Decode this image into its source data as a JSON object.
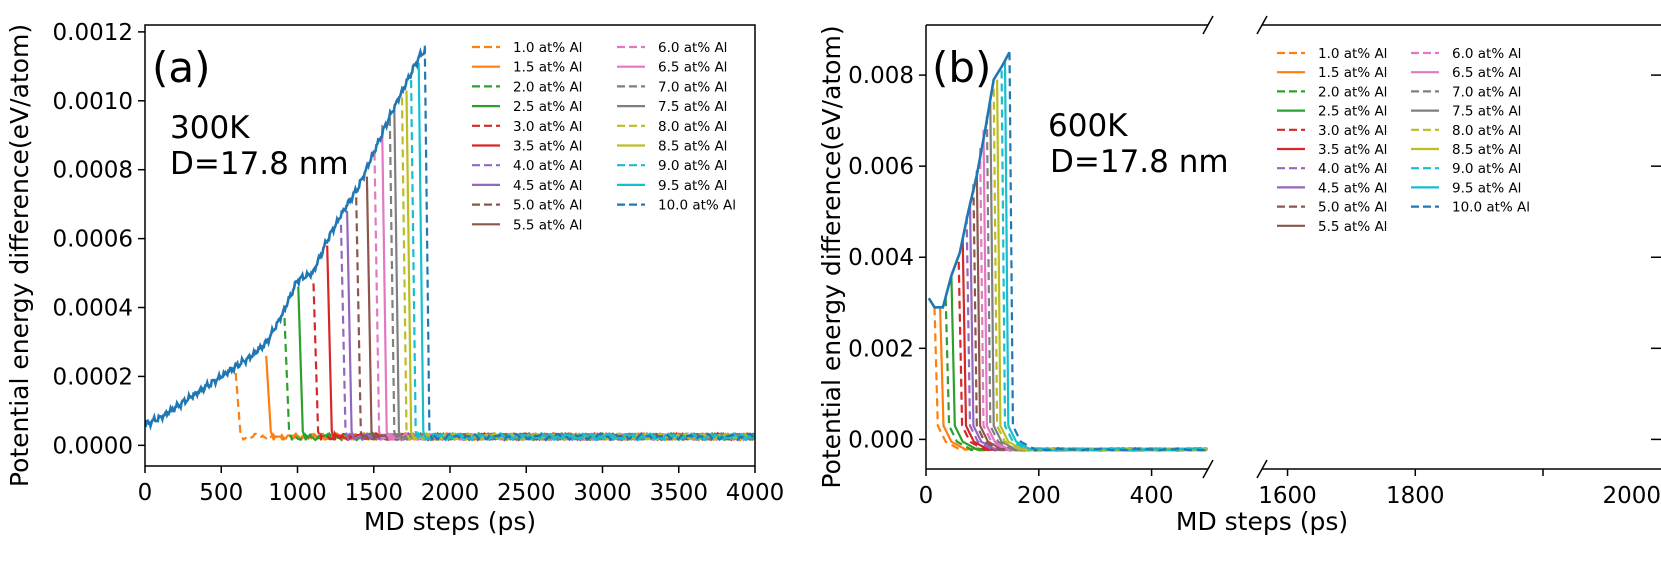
{
  "chart_data": [
    {
      "type": "line",
      "panel_label": "(a)",
      "annotations": [
        "300K",
        "D=17.8 nm"
      ],
      "xlabel": "MD steps (ps)",
      "ylabel": "Potential energy difference(eV/atom)",
      "xlim": [
        0,
        4000
      ],
      "ylim": [
        -6e-05,
        0.00122
      ],
      "x_ticks": [
        0,
        500,
        1000,
        1500,
        2000,
        2500,
        3000,
        3500,
        4000
      ],
      "x_tick_labels": [
        "0",
        "500",
        "1000",
        "1500",
        "2000",
        "2500",
        "3000",
        "3500",
        "4000"
      ],
      "y_ticks": [
        0,
        0.0002,
        0.0004,
        0.0006,
        0.0008,
        0.001,
        0.0012
      ],
      "y_tick_labels": [
        "0.0000",
        "0.0002",
        "0.0004",
        "0.0006",
        "0.0008",
        "0.0010",
        "0.0012"
      ],
      "legend_position": "top-right",
      "growth_curve": {
        "x": [
          0,
          100,
          200,
          300,
          400,
          500,
          600,
          700,
          800,
          900,
          1000,
          1100,
          1200,
          1300,
          1400,
          1500,
          1600,
          1700,
          1800,
          1850
        ],
        "y": [
          6e-05,
          8e-05,
          0.00011,
          0.00014,
          0.00017,
          0.0002,
          0.00023,
          0.00026,
          0.0003,
          0.00038,
          0.00048,
          0.0005,
          0.0006,
          0.00068,
          0.00075,
          0.00085,
          0.00095,
          0.00104,
          0.00113,
          0.00115
        ]
      },
      "series": [
        {
          "name": "1.0 at% Al",
          "color": "#ff7f0e",
          "dash": true,
          "drop_x": 600,
          "peak": 0.00021
        },
        {
          "name": "1.5 at% Al",
          "color": "#ff7f0e",
          "dash": false,
          "drop_x": 800,
          "peak": 0.00026
        },
        {
          "name": "2.0 at% Al",
          "color": "#2ca02c",
          "dash": true,
          "drop_x": 920,
          "peak": 0.00037
        },
        {
          "name": "2.5 at% Al",
          "color": "#2ca02c",
          "dash": false,
          "drop_x": 1010,
          "peak": 0.00046
        },
        {
          "name": "3.0 at% Al",
          "color": "#d62728",
          "dash": true,
          "drop_x": 1110,
          "peak": 0.00047
        },
        {
          "name": "3.5 at% Al",
          "color": "#d62728",
          "dash": false,
          "drop_x": 1200,
          "peak": 0.00058
        },
        {
          "name": "4.0 at% Al",
          "color": "#9467bd",
          "dash": true,
          "drop_x": 1290,
          "peak": 0.00064
        },
        {
          "name": "4.5 at% Al",
          "color": "#9467bd",
          "dash": false,
          "drop_x": 1330,
          "peak": 0.00068
        },
        {
          "name": "5.0 at% Al",
          "color": "#8c564b",
          "dash": true,
          "drop_x": 1390,
          "peak": 0.00072
        },
        {
          "name": "5.5 at% Al",
          "color": "#8c564b",
          "dash": false,
          "drop_x": 1460,
          "peak": 0.00078
        },
        {
          "name": "6.0 at% Al",
          "color": "#e377c2",
          "dash": true,
          "drop_x": 1510,
          "peak": 0.00085
        },
        {
          "name": "6.5 at% Al",
          "color": "#e377c2",
          "dash": false,
          "drop_x": 1560,
          "peak": 0.00093
        },
        {
          "name": "7.0 at% Al",
          "color": "#7f7f7f",
          "dash": true,
          "drop_x": 1610,
          "peak": 0.00095
        },
        {
          "name": "7.5 at% Al",
          "color": "#7f7f7f",
          "dash": false,
          "drop_x": 1640,
          "peak": 0.00098
        },
        {
          "name": "8.0 at% Al",
          "color": "#bcbd22",
          "dash": true,
          "drop_x": 1690,
          "peak": 0.00101
        },
        {
          "name": "8.5 at% Al",
          "color": "#bcbd22",
          "dash": false,
          "drop_x": 1720,
          "peak": 0.00103
        },
        {
          "name": "9.0 at% Al",
          "color": "#17becf",
          "dash": true,
          "drop_x": 1750,
          "peak": 0.00106
        },
        {
          "name": "9.5 at% Al",
          "color": "#17becf",
          "dash": false,
          "drop_x": 1800,
          "peak": 0.00111
        },
        {
          "name": "10.0 at% Al",
          "color": "#1f77b4",
          "dash": true,
          "drop_x": 1840,
          "peak": 0.00116
        }
      ]
    },
    {
      "type": "line",
      "panel_label": "(b)",
      "annotations": [
        "600K",
        "D=17.8 nm"
      ],
      "xlabel": "MD steps (ps)",
      "ylabel": "Potential energy difference(eV/atom)",
      "broken_x_axis": true,
      "xlim_left": [
        0,
        500
      ],
      "xlim_right": [
        1560,
        2000
      ],
      "ylim": [
        -0.00065,
        0.0091
      ],
      "x_ticks_left": [
        0,
        200,
        400
      ],
      "x_tick_labels_left": [
        "0",
        "200",
        "400"
      ],
      "x_ticks_right": [
        1600,
        1800,
        2000
      ],
      "x_tick_labels_right": [
        "1600",
        "1800",
        "2000"
      ],
      "y_ticks": [
        0,
        0.002,
        0.004,
        0.006,
        0.008
      ],
      "y_tick_labels": [
        "0.000",
        "0.002",
        "0.004",
        "0.006",
        "0.008"
      ],
      "legend_position": "top-right",
      "growth_curve": {
        "x": [
          5,
          15,
          30,
          45,
          60,
          75,
          90,
          105,
          120,
          135,
          148
        ],
        "y": [
          0.0031,
          0.0029,
          0.0029,
          0.0036,
          0.0041,
          0.005,
          0.0058,
          0.0068,
          0.0079,
          0.0082,
          0.0085
        ]
      },
      "series": [
        {
          "name": "1.0 at% Al",
          "color": "#ff7f0e",
          "dash": true,
          "drop_x": 15,
          "peak": 0.0029
        },
        {
          "name": "1.5 at% Al",
          "color": "#ff7f0e",
          "dash": false,
          "drop_x": 25,
          "peak": 0.0029
        },
        {
          "name": "2.0 at% Al",
          "color": "#2ca02c",
          "dash": true,
          "drop_x": 35,
          "peak": 0.0031
        },
        {
          "name": "2.5 at% Al",
          "color": "#2ca02c",
          "dash": false,
          "drop_x": 45,
          "peak": 0.0036
        },
        {
          "name": "3.0 at% Al",
          "color": "#d62728",
          "dash": true,
          "drop_x": 58,
          "peak": 0.0039
        },
        {
          "name": "3.5 at% Al",
          "color": "#d62728",
          "dash": false,
          "drop_x": 65,
          "peak": 0.0044
        },
        {
          "name": "4.0 at% Al",
          "color": "#9467bd",
          "dash": true,
          "drop_x": 72,
          "peak": 0.0049
        },
        {
          "name": "4.5 at% Al",
          "color": "#9467bd",
          "dash": false,
          "drop_x": 78,
          "peak": 0.0052
        },
        {
          "name": "5.0 at% Al",
          "color": "#8c564b",
          "dash": true,
          "drop_x": 84,
          "peak": 0.0056
        },
        {
          "name": "5.5 at% Al",
          "color": "#8c564b",
          "dash": false,
          "drop_x": 90,
          "peak": 0.0059
        },
        {
          "name": "6.0 at% Al",
          "color": "#e377c2",
          "dash": true,
          "drop_x": 96,
          "peak": 0.0064
        },
        {
          "name": "6.5 at% Al",
          "color": "#e377c2",
          "dash": false,
          "drop_x": 102,
          "peak": 0.0068
        },
        {
          "name": "7.0 at% Al",
          "color": "#7f7f7f",
          "dash": true,
          "drop_x": 108,
          "peak": 0.0071
        },
        {
          "name": "7.5 at% Al",
          "color": "#7f7f7f",
          "dash": false,
          "drop_x": 114,
          "peak": 0.0074
        },
        {
          "name": "8.0 at% Al",
          "color": "#bcbd22",
          "dash": true,
          "drop_x": 120,
          "peak": 0.0077
        },
        {
          "name": "8.5 at% Al",
          "color": "#bcbd22",
          "dash": false,
          "drop_x": 126,
          "peak": 0.0079
        },
        {
          "name": "9.0 at% Al",
          "color": "#17becf",
          "dash": true,
          "drop_x": 134,
          "peak": 0.0081
        },
        {
          "name": "9.5 at% Al",
          "color": "#17becf",
          "dash": false,
          "drop_x": 140,
          "peak": 0.0083
        },
        {
          "name": "10.0 at% Al",
          "color": "#1f77b4",
          "dash": true,
          "drop_x": 148,
          "peak": 0.0085
        }
      ]
    }
  ]
}
